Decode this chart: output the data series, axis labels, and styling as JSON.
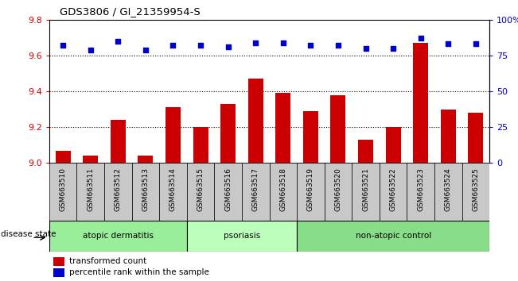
{
  "title": "GDS3806 / GI_21359954-S",
  "samples": [
    "GSM663510",
    "GSM663511",
    "GSM663512",
    "GSM663513",
    "GSM663514",
    "GSM663515",
    "GSM663516",
    "GSM663517",
    "GSM663518",
    "GSM663519",
    "GSM663520",
    "GSM663521",
    "GSM663522",
    "GSM663523",
    "GSM663524",
    "GSM663525"
  ],
  "bar_values": [
    9.07,
    9.04,
    9.24,
    9.04,
    9.31,
    9.2,
    9.33,
    9.47,
    9.39,
    9.29,
    9.38,
    9.13,
    9.2,
    9.67,
    9.3,
    9.28
  ],
  "percentile_values": [
    82,
    79,
    85,
    79,
    82,
    82,
    81,
    84,
    84,
    82,
    82,
    80,
    80,
    87,
    83,
    83
  ],
  "ylim_left": [
    9.0,
    9.8
  ],
  "ylim_right": [
    0,
    100
  ],
  "yticks_left": [
    9.0,
    9.2,
    9.4,
    9.6,
    9.8
  ],
  "yticks_right": [
    0,
    25,
    50,
    75,
    100
  ],
  "ytick_labels_right": [
    "0",
    "25",
    "50",
    "75",
    "100%"
  ],
  "bar_color": "#cc0000",
  "scatter_color": "#0000cc",
  "background_color": "#ffffff",
  "xticklabel_bg": "#c8c8c8",
  "groups": [
    {
      "label": "atopic dermatitis",
      "start": 0,
      "end": 5,
      "color": "#99ee99"
    },
    {
      "label": "psoriasis",
      "start": 5,
      "end": 9,
      "color": "#bbffbb"
    },
    {
      "label": "non-atopic control",
      "start": 9,
      "end": 16,
      "color": "#88dd88"
    }
  ],
  "disease_state_label": "disease state",
  "legend_bar_label": "transformed count",
  "legend_scatter_label": "percentile rank within the sample",
  "left_axis_color": "#cc0000",
  "right_axis_color": "#0000cc",
  "grid_yticks": [
    9.2,
    9.4,
    9.6
  ]
}
